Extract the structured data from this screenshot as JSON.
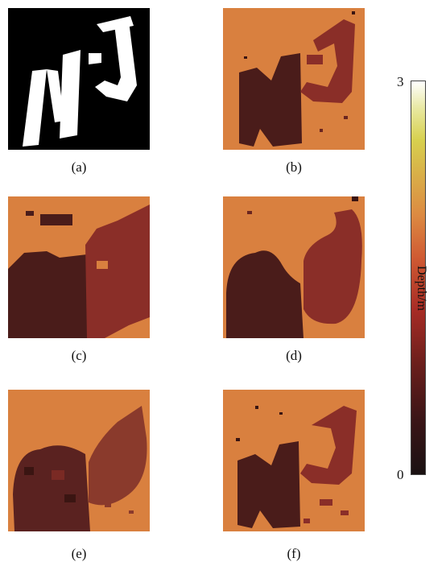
{
  "panels": [
    {
      "id": "a",
      "caption": "(a)"
    },
    {
      "id": "b",
      "caption": "(b)"
    },
    {
      "id": "c",
      "caption": "(c)"
    },
    {
      "id": "d",
      "caption": "(d)"
    },
    {
      "id": "e",
      "caption": "(e)"
    },
    {
      "id": "f",
      "caption": "(f)"
    }
  ],
  "colorbar": {
    "label": "Depth/m",
    "max_label": "3",
    "min_label": "0"
  },
  "colors": {
    "background_orange": "#d9803f",
    "dark_depth": "#4a1c1a",
    "mid_depth": "#8a2e28",
    "mask_white": "#ffffff",
    "mask_black": "#000000"
  }
}
